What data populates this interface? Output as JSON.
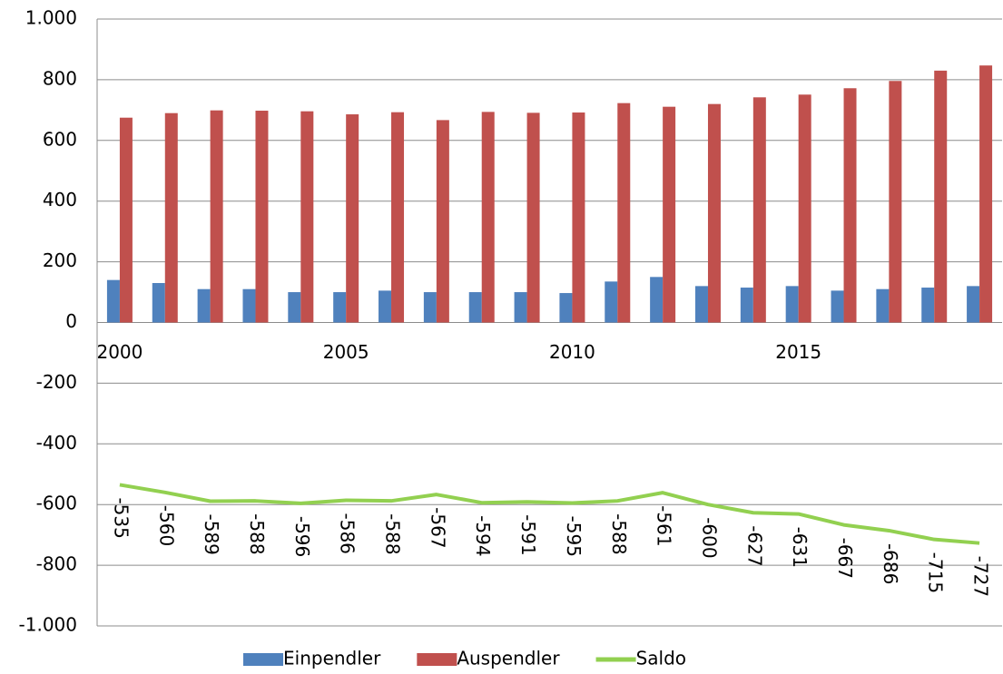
{
  "chart_data": {
    "type": "bar_line",
    "categories": [
      "2000",
      null,
      null,
      null,
      null,
      "2005",
      null,
      null,
      null,
      null,
      "2010",
      null,
      null,
      null,
      null,
      "2015",
      null,
      null,
      null,
      null
    ],
    "series": [
      {
        "name": "Einpendler",
        "color": "#4f81bd",
        "type": "bar",
        "values": [
          140,
          130,
          110,
          110,
          100,
          100,
          105,
          100,
          100,
          100,
          97,
          135,
          150,
          120,
          115,
          120,
          105,
          110,
          115,
          120
        ]
      },
      {
        "name": "Auspendler",
        "color": "#c0504d",
        "type": "bar",
        "values": [
          675,
          690,
          699,
          698,
          696,
          686,
          693,
          667,
          694,
          691,
          692,
          723,
          711,
          720,
          742,
          751,
          772,
          796,
          830,
          847
        ]
      },
      {
        "name": "Saldo",
        "color": "#92d050",
        "type": "line",
        "values": [
          -535,
          -560,
          -589,
          -588,
          -596,
          -586,
          -588,
          -567,
          -594,
          -591,
          -595,
          -588,
          -561,
          -600,
          -627,
          -631,
          -667,
          -686,
          -715,
          -727
        ]
      }
    ],
    "ylim": [
      -1000,
      1000
    ],
    "yticks": [
      {
        "value": -1000,
        "label": "-1.000"
      },
      -800,
      -600,
      -400,
      -200,
      0,
      200,
      400,
      600,
      800,
      {
        "value": 1000,
        "label": "1.000"
      }
    ],
    "grid": true,
    "legend": "bottom"
  }
}
